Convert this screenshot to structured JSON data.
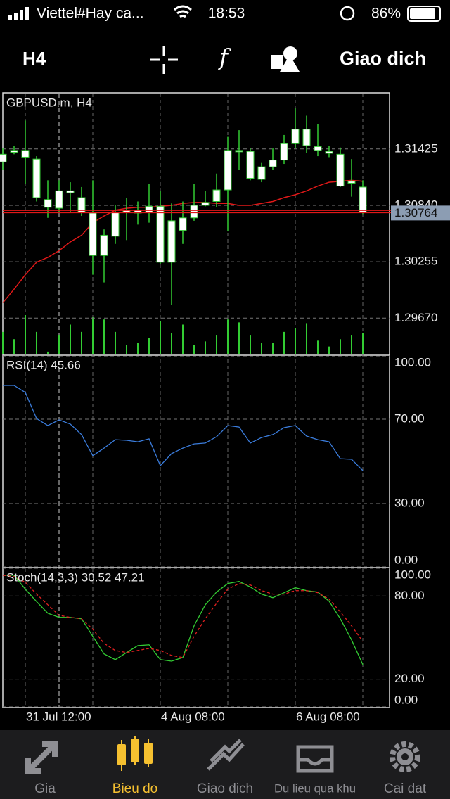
{
  "status_bar": {
    "carrier": "Viettel#Hay ca...",
    "time": "18:53",
    "battery": "86%"
  },
  "toolbar": {
    "timeframe": "H4",
    "trade": "Giao dich"
  },
  "chart_data": [
    {
      "type": "candlestick",
      "title": "GBPUSD.m, H4",
      "categories": [
        null,
        null,
        "31 Jul 12:00",
        null,
        null,
        null,
        null,
        null,
        null,
        null,
        null,
        null,
        null,
        null,
        "4 Aug 08:00",
        null,
        null,
        null,
        null,
        null,
        null,
        null,
        null,
        null,
        null,
        null,
        "6 Aug 08:00",
        null,
        null,
        null,
        null,
        null,
        null
      ],
      "open": [
        1.3129,
        1.3139,
        1.3134,
        1.3132,
        1.309,
        1.3081,
        1.3097,
        1.3092,
        1.3076,
        1.3032,
        1.3052,
        1.3077,
        1.3079,
        1.3077,
        1.3083,
        1.3025,
        1.3058,
        1.3071,
        1.3084,
        1.3088,
        1.31,
        1.314,
        1.314,
        1.3111,
        1.3124,
        1.3131,
        1.3148,
        1.3163,
        1.3145,
        1.314,
        1.3137,
        1.3109,
        1.3103
      ],
      "high": [
        1.3143,
        1.3146,
        1.3172,
        1.3135,
        1.311,
        1.311,
        1.3108,
        1.3103,
        1.311,
        1.3059,
        1.3084,
        1.3092,
        1.3088,
        1.3106,
        1.3099,
        1.3086,
        1.3088,
        1.3106,
        1.3099,
        1.3117,
        1.3155,
        1.3162,
        1.3143,
        1.3128,
        1.3143,
        1.3157,
        1.3185,
        1.3177,
        1.3168,
        1.3146,
        1.3144,
        1.3132,
        1.311
      ],
      "low": [
        1.3121,
        1.3137,
        1.3106,
        1.3088,
        1.3071,
        1.3077,
        1.3077,
        1.3073,
        1.3012,
        1.3004,
        1.3044,
        1.3048,
        1.3064,
        1.3066,
        1.3023,
        1.2981,
        1.3044,
        1.3068,
        1.3083,
        1.3082,
        1.3057,
        1.3121,
        1.311,
        1.3108,
        1.3121,
        1.3127,
        1.3143,
        1.3138,
        1.3135,
        1.3134,
        1.3103,
        1.3093,
        1.3075
      ],
      "close": [
        1.3137,
        1.3141,
        1.3141,
        1.3092,
        1.3082,
        1.3099,
        1.3099,
        1.3077,
        1.3032,
        1.3053,
        1.3077,
        1.3079,
        1.3076,
        1.3083,
        1.3025,
        1.3068,
        1.3071,
        1.3084,
        1.3087,
        1.31,
        1.3141,
        1.3141,
        1.3112,
        1.3124,
        1.3131,
        1.3148,
        1.3163,
        1.3146,
        1.3141,
        1.3138,
        1.3104,
        1.3107,
        1.30764
      ],
      "candle_color": "#ffffff",
      "wick_color": "#33cc33",
      "ma": {
        "color": "#e01818",
        "values": [
          1.2983,
          1.2997,
          1.3012,
          1.3025,
          1.303,
          1.3037,
          1.3046,
          1.3053,
          1.3066,
          1.3073,
          1.3079,
          1.3081,
          1.3082,
          1.3082,
          1.3083,
          1.3084,
          1.3086,
          1.3087,
          1.3087,
          1.3086,
          1.3086,
          1.3084,
          1.3084,
          1.3086,
          1.3088,
          1.3092,
          1.3095,
          1.3099,
          1.3104,
          1.3108,
          1.3109,
          1.311,
          1.3109
        ]
      },
      "volume": {
        "color": "#33cc33",
        "values": [
          30,
          20,
          53,
          30,
          3,
          25,
          40,
          30,
          50,
          47,
          30,
          12,
          15,
          22,
          45,
          28,
          40,
          12,
          17,
          25,
          47,
          43,
          25,
          15,
          15,
          30,
          35,
          42,
          18,
          10,
          20,
          25,
          28
        ]
      },
      "bid": 1.30764,
      "bid_color": "#e01818",
      "ylim": [
        1.293,
        1.32
      ],
      "yticks": [
        1.31425,
        {
          "value": 1.3084,
          "label": "1.30840"
        },
        1.30255,
        {
          "value": 1.2967,
          "label": "1.29670"
        }
      ],
      "grid": true
    },
    {
      "type": "line",
      "title": "RSI(14) 45.66",
      "series": [
        {
          "color": "#3b7ddd",
          "values": [
            86,
            86,
            82.7,
            70.3,
            67,
            69.7,
            67.7,
            62.7,
            52.7,
            56.3,
            60.3,
            60,
            59.3,
            60.7,
            48,
            53.7,
            56.3,
            58.3,
            58.7,
            61.7,
            67,
            66.3,
            58.7,
            61.3,
            62.7,
            66,
            67,
            62,
            60.3,
            59.3,
            51.3,
            51,
            45.66
          ]
        }
      ],
      "ylim": [
        0,
        100
      ],
      "yticks": [
        {
          "value": 100,
          "label": "100.00"
        },
        {
          "value": 70,
          "label": "70.00"
        },
        {
          "value": 30,
          "label": "30.00"
        },
        {
          "value": 0,
          "label": "0.00"
        }
      ],
      "grid": true
    },
    {
      "type": "line",
      "title": "Stoch(14,3,3) 30.52 47.21",
      "series": [
        {
          "color": "#33cc33",
          "values": [
            95,
            95,
            85,
            76,
            67.6,
            64.6,
            64.6,
            63.6,
            50.9,
            38.2,
            34.1,
            39.2,
            44.2,
            44.8,
            34.1,
            33,
            35.6,
            58.5,
            73.7,
            82.9,
            89,
            90.5,
            86.5,
            81.4,
            78.8,
            82.4,
            86,
            83.9,
            82.9,
            76.3,
            63.6,
            48.3,
            30.52
          ]
        },
        {
          "color": "#e02020",
          "dashed": true,
          "values": [
            95,
            94,
            90,
            81.4,
            73.7,
            66.1,
            64.6,
            63.6,
            56,
            45.8,
            40.7,
            39.2,
            40.7,
            42.2,
            40.7,
            37.1,
            35.6,
            50.9,
            63.6,
            74.8,
            85,
            89,
            88,
            83.9,
            81.4,
            81.4,
            83.9,
            83.9,
            82.4,
            77.8,
            68.6,
            58.5,
            47.21
          ]
        }
      ],
      "ylim": [
        0,
        100
      ],
      "yticks": [
        {
          "value": 100,
          "label": "100.00"
        },
        {
          "value": 80,
          "label": "80.00"
        },
        {
          "value": 20,
          "label": "20.00"
        },
        {
          "value": 0,
          "label": "0.00"
        }
      ],
      "grid": true
    }
  ],
  "tab_bar": {
    "tabs": [
      "Gia",
      "Bieu do",
      "Giao dich",
      "Du lieu qua khu",
      "Cai dat"
    ],
    "active": 1,
    "active_color": "#f5c030",
    "color": "#8e8e93"
  }
}
